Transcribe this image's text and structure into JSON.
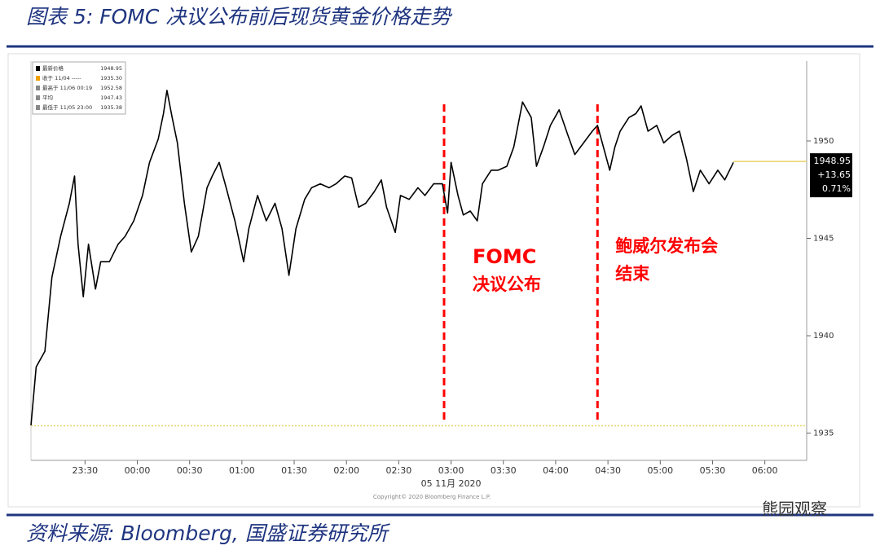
{
  "header": {
    "title": "图表 5: FOMC 决议公布前后现货黄金价格走势"
  },
  "chart_data": {
    "type": "line",
    "x": [
      "22:59",
      "23:02",
      "23:07",
      "23:11",
      "23:16",
      "23:21",
      "23:24",
      "23:26",
      "23:29",
      "23:32",
      "23:36",
      "23:39",
      "23:44",
      "23:49",
      "23:53",
      "23:58",
      "00:03",
      "00:07",
      "00:12",
      "00:15",
      "00:17",
      "00:20",
      "00:23",
      "00:27",
      "00:31",
      "00:35",
      "00:40",
      "00:43",
      "00:47",
      "00:51",
      "00:56",
      "01:01",
      "01:04",
      "01:09",
      "01:14",
      "01:19",
      "01:23",
      "01:27",
      "01:31",
      "01:36",
      "01:40",
      "01:45",
      "01:50",
      "01:54",
      "01:59",
      "02:03",
      "02:07",
      "02:11",
      "02:16",
      "02:20",
      "02:23",
      "02:28",
      "02:31",
      "02:36",
      "02:41",
      "02:45",
      "02:50",
      "02:55",
      "02:58",
      "03:00",
      "03:04",
      "03:07",
      "03:11",
      "03:15",
      "03:18",
      "03:23",
      "03:27",
      "03:32",
      "03:36",
      "03:41",
      "03:46",
      "03:49",
      "03:53",
      "03:57",
      "04:02",
      "04:07",
      "04:11",
      "04:16",
      "04:21",
      "04:24",
      "04:28",
      "04:31",
      "04:34",
      "04:37",
      "04:42",
      "04:46",
      "04:49",
      "04:53",
      "04:58",
      "05:02",
      "05:07",
      "05:11",
      "05:15",
      "05:19",
      "05:23",
      "05:28",
      "05:33",
      "05:37",
      "05:42"
    ],
    "series": [
      {
        "name": "最新价格",
        "color": "#000000",
        "values": [
          1935.4,
          1938.4,
          1939.2,
          1943.0,
          1945.1,
          1946.8,
          1948.2,
          1944.7,
          1942.0,
          1944.7,
          1942.4,
          1943.8,
          1943.8,
          1944.7,
          1945.1,
          1945.9,
          1947.2,
          1948.9,
          1950.1,
          1951.4,
          1952.6,
          1951.2,
          1949.9,
          1946.8,
          1944.3,
          1945.1,
          1947.6,
          1948.2,
          1948.9,
          1947.6,
          1945.9,
          1943.8,
          1945.5,
          1947.2,
          1945.9,
          1946.8,
          1945.5,
          1943.1,
          1945.5,
          1947.0,
          1947.6,
          1947.8,
          1947.6,
          1947.8,
          1948.2,
          1948.1,
          1946.6,
          1946.8,
          1947.4,
          1948.0,
          1946.6,
          1945.3,
          1947.2,
          1947.0,
          1947.6,
          1947.2,
          1947.8,
          1947.8,
          1946.3,
          1948.9,
          1947.2,
          1946.2,
          1946.4,
          1945.9,
          1947.8,
          1948.5,
          1948.5,
          1948.7,
          1949.7,
          1952.0,
          1951.2,
          1948.7,
          1949.7,
          1950.8,
          1951.6,
          1950.3,
          1949.3,
          1949.9,
          1950.5,
          1950.8,
          1949.5,
          1948.5,
          1949.7,
          1950.5,
          1951.2,
          1951.4,
          1951.8,
          1950.5,
          1950.8,
          1949.9,
          1950.3,
          1950.5,
          1949.1,
          1947.4,
          1948.5,
          1947.8,
          1948.5,
          1948.0,
          1948.9
        ]
      }
    ],
    "xlim": [
      "22:59",
      "06:24"
    ],
    "xticks": [
      "23:30",
      "00:00",
      "00:30",
      "01:00",
      "01:30",
      "02:00",
      "02:30",
      "03:00",
      "03:30",
      "04:00",
      "04:30",
      "05:00",
      "05:30",
      "06:00"
    ],
    "x_date_label": "05 11月 2020",
    "ylim": [
      1933.6,
      1954.1
    ],
    "yticks": [
      1935,
      1940,
      1945,
      1950
    ],
    "legend": [
      {
        "label": "最新价格",
        "value": 1948.95
      },
      {
        "label": "收于 11/04 -----",
        "value": {
          "value": 1935.3,
          "label": "1935.30"
        }
      },
      {
        "label": "最高于 11/06 00:19",
        "value": 1952.58
      },
      {
        "label": "平均",
        "value": 1947.43
      },
      {
        "label": "最低于 11/05 23:00",
        "value": 1935.38
      }
    ],
    "last_price": {
      "value": 1948.95,
      "change": {
        "value": 13.65,
        "label": "+13.65"
      },
      "pct": {
        "value": 0.71,
        "label": "0.71%"
      }
    },
    "reference_color": "#e8d36a",
    "events": [
      {
        "x": "02:56",
        "lines": [
          "FOMC",
          "决议公布"
        ],
        "color": "#ff0000"
      },
      {
        "x": "04:24",
        "lines": [
          "鲍威尔发布会",
          "结束"
        ],
        "color": "#ff0000"
      }
    ],
    "copyright": "Copyright© 2020 Bloomberg Finance L.P."
  },
  "footer": {
    "source": "资料来源: Bloomberg, 国盛证券研究所",
    "watermark": "熊园观察"
  }
}
